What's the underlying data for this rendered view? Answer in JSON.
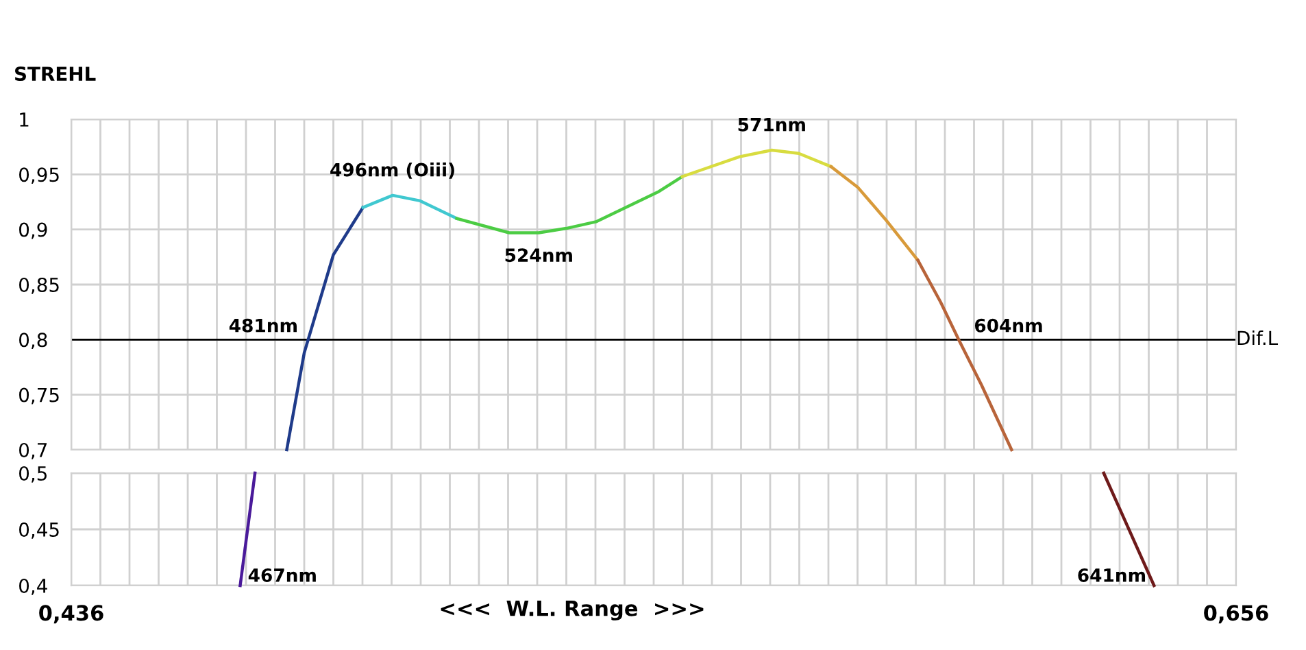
{
  "chart_data": [
    {
      "type": "line",
      "ylabel": "STREHL",
      "xlim": [
        0.436,
        0.656
      ],
      "ylim": [
        0.7,
        1.0
      ],
      "xticks": [
        {
          "value": 0.436,
          "label": null
        },
        {
          "value": 0.4415,
          "label": null
        },
        {
          "value": 0.447,
          "label": null
        },
        {
          "value": 0.4525,
          "label": null
        },
        {
          "value": 0.458,
          "label": null
        },
        {
          "value": 0.4635,
          "label": null
        },
        {
          "value": 0.469,
          "label": null
        },
        {
          "value": 0.4745,
          "label": null
        },
        {
          "value": 0.48,
          "label": null
        },
        {
          "value": 0.4855,
          "label": null
        },
        {
          "value": 0.491,
          "label": null
        },
        {
          "value": 0.4965,
          "label": null
        },
        {
          "value": 0.502,
          "label": null
        },
        {
          "value": 0.5075,
          "label": null
        },
        {
          "value": 0.513,
          "label": null
        },
        {
          "value": 0.5185,
          "label": null
        },
        {
          "value": 0.524,
          "label": null
        },
        {
          "value": 0.5295,
          "label": null
        },
        {
          "value": 0.535,
          "label": null
        },
        {
          "value": 0.5405,
          "label": null
        },
        {
          "value": 0.546,
          "label": null
        },
        {
          "value": 0.5515,
          "label": null
        },
        {
          "value": 0.557,
          "label": null
        },
        {
          "value": 0.5625,
          "label": null
        },
        {
          "value": 0.568,
          "label": null
        },
        {
          "value": 0.5735,
          "label": null
        },
        {
          "value": 0.579,
          "label": null
        },
        {
          "value": 0.5845,
          "label": null
        },
        {
          "value": 0.59,
          "label": null
        },
        {
          "value": 0.5955,
          "label": null
        },
        {
          "value": 0.601,
          "label": null
        },
        {
          "value": 0.6065,
          "label": null
        },
        {
          "value": 0.612,
          "label": null
        },
        {
          "value": 0.6175,
          "label": null
        },
        {
          "value": 0.623,
          "label": null
        },
        {
          "value": 0.6285,
          "label": null
        },
        {
          "value": 0.634,
          "label": null
        },
        {
          "value": 0.6395,
          "label": null
        },
        {
          "value": 0.645,
          "label": null
        },
        {
          "value": 0.6505,
          "label": null
        },
        {
          "value": 0.656,
          "label": null
        }
      ],
      "yticks": [
        {
          "value": 0.7,
          "label": "0,7"
        },
        {
          "value": 0.75,
          "label": "0,75"
        },
        {
          "value": 0.8,
          "label": "0,8"
        },
        {
          "value": 0.85,
          "label": "0,85"
        },
        {
          "value": 0.9,
          "label": "0,9"
        },
        {
          "value": 0.95,
          "label": "0,95"
        },
        {
          "value": 1.0,
          "label": "1"
        }
      ],
      "tick_labels": "y",
      "grid": true,
      "marker": "none",
      "line_style": "solid",
      "ref_lines": [
        {
          "axis": "y",
          "value": 0.8,
          "label": "Dif.L",
          "color": "#000000"
        }
      ],
      "series": [
        {
          "color": "#1f3b8a",
          "x": [
            0.4767,
            0.48,
            0.4855,
            0.4911
          ],
          "values": [
            0.7,
            0.788,
            0.877,
            0.92
          ]
        },
        {
          "color": "#40c8d0",
          "x": [
            0.4911,
            0.4967,
            0.5019,
            0.5088
          ],
          "values": [
            0.92,
            0.931,
            0.926,
            0.91
          ]
        },
        {
          "color": "#4ccc44",
          "x": [
            0.5088,
            0.5187,
            0.5243,
            0.5295,
            0.5351,
            0.5468,
            0.5514
          ],
          "values": [
            0.91,
            0.897,
            0.897,
            0.901,
            0.907,
            0.934,
            0.948
          ]
        },
        {
          "color": "#d8dc40",
          "x": [
            0.5514,
            0.5622,
            0.5683,
            0.5734,
            0.5795
          ],
          "values": [
            0.948,
            0.966,
            0.972,
            0.969,
            0.957
          ]
        },
        {
          "color": "#d89a3a",
          "x": [
            0.5795,
            0.5846,
            0.5898,
            0.5959
          ],
          "values": [
            0.957,
            0.938,
            0.909,
            0.872
          ]
        },
        {
          "color": "#b8643a",
          "x": [
            0.5959,
            0.6002,
            0.6036,
            0.6079,
            0.6136
          ],
          "values": [
            0.872,
            0.834,
            0.8,
            0.759,
            0.7
          ]
        }
      ],
      "annotations": [
        {
          "text": "481nm",
          "x": 0.481,
          "y": 0.8
        },
        {
          "text": "496nm (Oiii)",
          "x": 0.4967,
          "y": 0.931
        },
        {
          "text": "524nm",
          "x": 0.5243,
          "y": 0.897
        },
        {
          "text": "571nm",
          "x": 0.5683,
          "y": 0.972
        },
        {
          "text": "604nm",
          "x": 0.6036,
          "y": 0.8
        }
      ]
    },
    {
      "type": "line",
      "xlabel": "<<<  W.L. Range  >>>",
      "xlim": [
        0.436,
        0.656
      ],
      "ylim": [
        0.4,
        0.5
      ],
      "xticks": [
        {
          "value": 0.436,
          "label": "0,436"
        },
        {
          "value": 0.4415,
          "label": null
        },
        {
          "value": 0.447,
          "label": null
        },
        {
          "value": 0.4525,
          "label": null
        },
        {
          "value": 0.458,
          "label": null
        },
        {
          "value": 0.4635,
          "label": null
        },
        {
          "value": 0.469,
          "label": null
        },
        {
          "value": 0.4745,
          "label": null
        },
        {
          "value": 0.48,
          "label": null
        },
        {
          "value": 0.4855,
          "label": null
        },
        {
          "value": 0.491,
          "label": null
        },
        {
          "value": 0.4965,
          "label": null
        },
        {
          "value": 0.502,
          "label": null
        },
        {
          "value": 0.5075,
          "label": null
        },
        {
          "value": 0.513,
          "label": null
        },
        {
          "value": 0.5185,
          "label": null
        },
        {
          "value": 0.524,
          "label": null
        },
        {
          "value": 0.5295,
          "label": null
        },
        {
          "value": 0.535,
          "label": null
        },
        {
          "value": 0.5405,
          "label": null
        },
        {
          "value": 0.546,
          "label": null
        },
        {
          "value": 0.5515,
          "label": null
        },
        {
          "value": 0.557,
          "label": null
        },
        {
          "value": 0.5625,
          "label": null
        },
        {
          "value": 0.568,
          "label": null
        },
        {
          "value": 0.5735,
          "label": null
        },
        {
          "value": 0.579,
          "label": null
        },
        {
          "value": 0.5845,
          "label": null
        },
        {
          "value": 0.59,
          "label": null
        },
        {
          "value": 0.5955,
          "label": null
        },
        {
          "value": 0.601,
          "label": null
        },
        {
          "value": 0.6065,
          "label": null
        },
        {
          "value": 0.612,
          "label": null
        },
        {
          "value": 0.6175,
          "label": null
        },
        {
          "value": 0.623,
          "label": null
        },
        {
          "value": 0.6285,
          "label": null
        },
        {
          "value": 0.634,
          "label": null
        },
        {
          "value": 0.6395,
          "label": null
        },
        {
          "value": 0.645,
          "label": null
        },
        {
          "value": 0.6505,
          "label": null
        },
        {
          "value": 0.656,
          "label": "0,656"
        }
      ],
      "yticks": [
        {
          "value": 0.4,
          "label": "0,4"
        },
        {
          "value": 0.45,
          "label": "0,45"
        },
        {
          "value": 0.5,
          "label": "0,5"
        }
      ],
      "grid": true,
      "marker": "none",
      "line_style": "solid",
      "series": [
        {
          "color": "#4a1a9a",
          "x": [
            0.4707,
            0.4679
          ],
          "values": [
            0.5,
            0.4
          ]
        },
        {
          "color": "#6e1a1a",
          "x": [
            0.631,
            0.6405
          ],
          "values": [
            0.5,
            0.4
          ]
        }
      ],
      "annotations": [
        {
          "text": "467nm",
          "x": 0.4679,
          "y": 0.4
        },
        {
          "text": "641nm",
          "x": 0.6405,
          "y": 0.4
        }
      ]
    }
  ]
}
